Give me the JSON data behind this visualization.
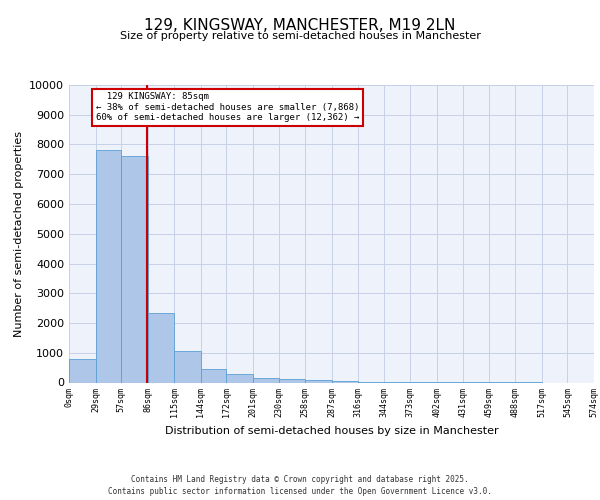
{
  "title": "129, KINGSWAY, MANCHESTER, M19 2LN",
  "subtitle": "Size of property relative to semi-detached houses in Manchester",
  "xlabel": "Distribution of semi-detached houses by size in Manchester",
  "ylabel": "Number of semi-detached properties",
  "footer_line1": "Contains HM Land Registry data © Crown copyright and database right 2025.",
  "footer_line2": "Contains public sector information licensed under the Open Government Licence v3.0.",
  "bin_edges": [
    0,
    29,
    57,
    86,
    115,
    144,
    172,
    201,
    230,
    258,
    287,
    316,
    344,
    373,
    402,
    431,
    459,
    488,
    517,
    545,
    574
  ],
  "bin_labels": [
    "0sqm",
    "29sqm",
    "57sqm",
    "86sqm",
    "115sqm",
    "144sqm",
    "172sqm",
    "201sqm",
    "230sqm",
    "258sqm",
    "287sqm",
    "316sqm",
    "344sqm",
    "373sqm",
    "402sqm",
    "431sqm",
    "459sqm",
    "488sqm",
    "517sqm",
    "545sqm",
    "574sqm"
  ],
  "bar_heights": [
    800,
    7800,
    7600,
    2350,
    1050,
    450,
    270,
    160,
    110,
    70,
    40,
    20,
    10,
    5,
    3,
    2,
    1,
    1,
    0,
    0
  ],
  "bar_color": "#aec6e8",
  "bar_edge_color": "#5a9fd4",
  "property_size": 85,
  "property_label": "129 KINGSWAY: 85sqm",
  "pct_smaller": 38,
  "pct_larger": 60,
  "count_smaller": 7868,
  "count_larger": 12362,
  "vline_color": "#cc0000",
  "annotation_box_color": "#cc0000",
  "ylim": [
    0,
    10000
  ],
  "yticks": [
    0,
    1000,
    2000,
    3000,
    4000,
    5000,
    6000,
    7000,
    8000,
    9000,
    10000
  ],
  "background_color": "#eef2fb",
  "grid_color": "#c8d0e8",
  "title_fontsize": 11,
  "subtitle_fontsize": 8,
  "ylabel_fontsize": 8,
  "xlabel_fontsize": 8,
  "ytick_fontsize": 8,
  "xtick_fontsize": 6,
  "footer_fontsize": 5.5
}
